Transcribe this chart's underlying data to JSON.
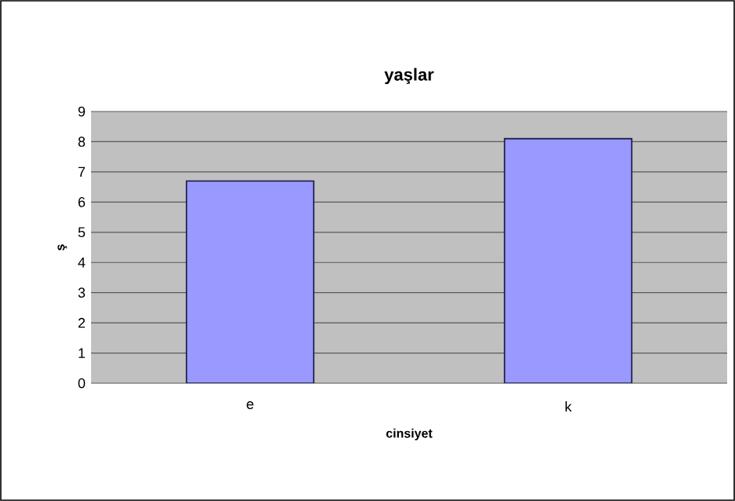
{
  "chart_data": {
    "type": "bar",
    "title": "yaşlar",
    "xlabel": "cinsiyet",
    "ylabel": "ş",
    "categories": [
      "e",
      "k"
    ],
    "values": [
      6.7,
      8.1
    ],
    "color": "#9999ff",
    "ylim": [
      0,
      9
    ],
    "yticks": [
      0,
      1,
      2,
      3,
      4,
      5,
      6,
      7,
      8,
      9
    ],
    "grid": "y"
  }
}
